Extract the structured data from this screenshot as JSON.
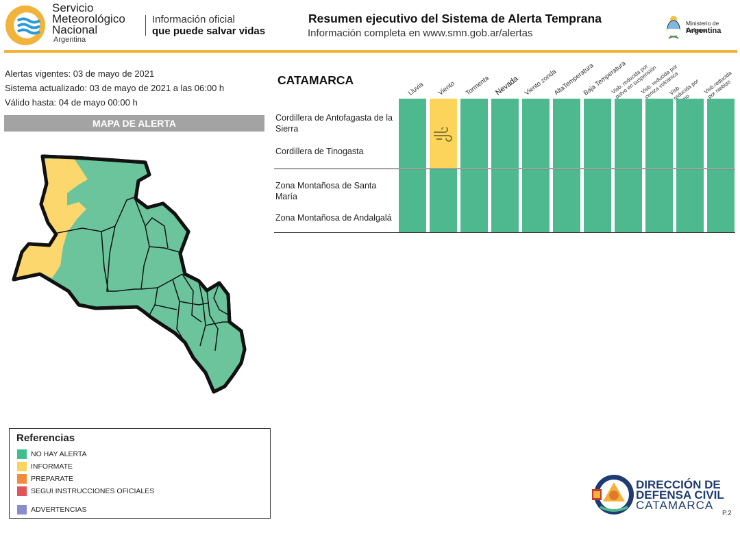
{
  "header": {
    "org_name": "Servicio Meteorológico Nacional",
    "org_line1": "Servicio",
    "org_line2": "Meteorológico",
    "org_line3": "Nacional",
    "org_country": "Argentina",
    "tagline_1": "Información oficial",
    "tagline_2": "que puede salvar vidas",
    "title": "Resumen ejecutivo del Sistema de Alerta Temprana",
    "subtitle": "Información completa en www.smn.gob.ar/alertas",
    "ministry_1": "Ministerio de Defensa",
    "ministry_2": "Argentina",
    "accent_color": "#f2b33a"
  },
  "info": {
    "alerts_line": "Alertas vigentes: 03 de mayo de 2021",
    "updated_line": "Sistema actualizado: 03 de mayo de 2021 a las 06:00 h",
    "valid_line": "Válido hasta: 04 de mayo 00:00 h"
  },
  "map": {
    "heading": "MAPA DE ALERTA",
    "colors": {
      "no_alert": "#6cc49c",
      "inform": "#fcd76e"
    }
  },
  "table": {
    "province": "CATAMARCA",
    "columns": [
      "Lluvia",
      "Viento",
      "Tormenta",
      "Nevada",
      "Viento zonda",
      "AltaTemperatura",
      "Baja Temperatura",
      "Visb. reducida por polvo en suspensión",
      "Visb. reducida por ceniza volcánica",
      "Visb. reducida por humo",
      "Visb.reducida por nieblas"
    ],
    "groups": [
      {
        "zones": [
          "Cordillera de Antofagasta de la Sierra",
          "Cordillera de Tinogasta"
        ],
        "levels": [
          "no_alert",
          "inform",
          "no_alert",
          "no_alert",
          "no_alert",
          "no_alert",
          "no_alert",
          "no_alert",
          "no_alert",
          "no_alert",
          "no_alert"
        ],
        "icon": "wind-icon"
      },
      {
        "zones": [
          "Zona Montañosa de Santa María",
          "Zona Montañosa de Andalgalá"
        ],
        "levels": [
          "no_alert",
          "no_alert",
          "no_alert",
          "no_alert",
          "no_alert",
          "no_alert",
          "no_alert",
          "no_alert",
          "no_alert",
          "no_alert",
          "no_alert"
        ]
      }
    ]
  },
  "legend": {
    "title": "Referencias",
    "items": [
      {
        "label": "NO HAY ALERTA",
        "color": "#3dbf8e"
      },
      {
        "label": "INFORMATE",
        "color": "#fcd35c"
      },
      {
        "label": "PREPARATE",
        "color": "#f28c3a"
      },
      {
        "label": "SEGUI INSTRUCCIONES OFICIALES",
        "color": "#e05555"
      },
      {
        "label": "ADVERTENCIAS",
        "color": "#8c8ccc"
      }
    ]
  },
  "footer": {
    "dc_line1": "DIRECCIÓN DE",
    "dc_line2": "DEFENSA CIVIL",
    "dc_line3": "CATAMARCA",
    "page": "P.2"
  }
}
